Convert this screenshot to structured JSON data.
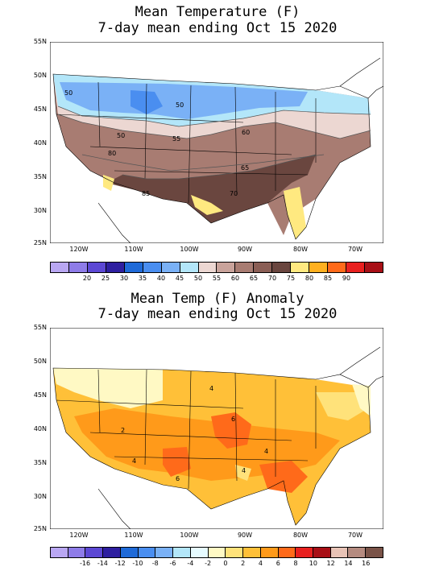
{
  "maps": [
    {
      "title_line1": "Mean Temperature (F)",
      "title_line2": "7-day mean ending Oct 15 2020",
      "lat_labels": [
        "55N",
        "50N",
        "45N",
        "40N",
        "35N",
        "30N",
        "25N"
      ],
      "lon_labels": [
        "120W",
        "110W",
        "100W",
        "90W",
        "80W",
        "70W"
      ],
      "contour_labels": [
        "50",
        "50",
        "50",
        "55",
        "60",
        "80",
        "65",
        "70",
        "85"
      ],
      "colorbar": {
        "colors": [
          "#b9a7f2",
          "#8e7ce8",
          "#5c48d4",
          "#2e1fa0",
          "#1f6ad8",
          "#4a8ef0",
          "#7ab1f6",
          "#b3e6f9",
          "#ecd7d2",
          "#c9a39b",
          "#a87c72",
          "#8a5e55",
          "#6a463f",
          "#ffe980",
          "#ffb01f",
          "#ff6a1a",
          "#e8201f",
          "#a80f16"
        ],
        "labels": [
          "20",
          "25",
          "30",
          "35",
          "40",
          "45",
          "50",
          "55",
          "60",
          "65",
          "70",
          "75",
          "80",
          "85",
          "90"
        ]
      }
    },
    {
      "title_line1": "Mean Temp (F) Anomaly",
      "title_line2": "7-day mean ending Oct 15 2020",
      "lat_labels": [
        "55N",
        "50N",
        "45N",
        "40N",
        "35N",
        "30N",
        "25N"
      ],
      "lon_labels": [
        "120W",
        "110W",
        "100W",
        "90W",
        "80W",
        "70W"
      ],
      "contour_labels": [
        "4",
        "6",
        "2",
        "4",
        "4",
        "6",
        "4"
      ],
      "colorbar": {
        "colors": [
          "#b9a7f2",
          "#8e7ce8",
          "#5c48d4",
          "#2e1fa0",
          "#1f6ad8",
          "#4a8ef0",
          "#7ab1f6",
          "#b3e6f9",
          "#e6fbff",
          "#fff9c4",
          "#ffe27a",
          "#ffc038",
          "#ff9a1a",
          "#ff6a1a",
          "#e8201f",
          "#a80f16",
          "#e8c3b6",
          "#b58b80",
          "#7a5348"
        ],
        "labels": [
          "-16",
          "-14",
          "-12",
          "-10",
          "-8",
          "-6",
          "-4",
          "-2",
          "0",
          "2",
          "4",
          "6",
          "8",
          "10",
          "12",
          "14",
          "16"
        ]
      }
    }
  ]
}
